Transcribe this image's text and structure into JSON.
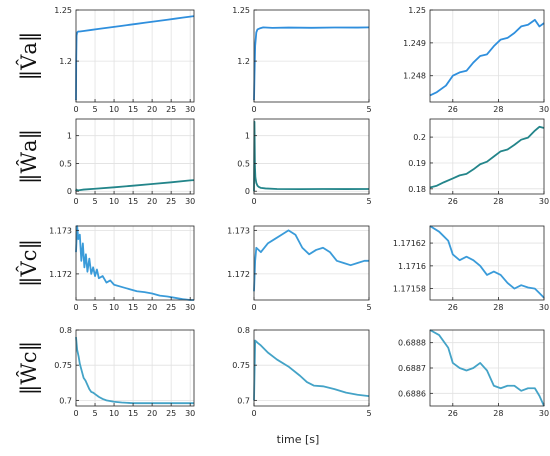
{
  "figure": {
    "xlabel": "time [s]",
    "row_labels": [
      "‖V̂a‖",
      "‖Ŵa‖",
      "‖V̂c‖",
      "‖Ŵc‖"
    ]
  },
  "chart_data": [
    {
      "type": "line",
      "row": 0,
      "col": 0,
      "color": "#2f8fdd",
      "xlim": [
        0,
        31
      ],
      "ylim": [
        1.16,
        1.25
      ],
      "xticks": [
        0,
        5,
        10,
        15,
        20,
        25,
        30
      ],
      "yticks": [
        1.2,
        1.25
      ],
      "ytick_labels": [
        "1.2",
        "1.25"
      ],
      "x": [
        0,
        0.05,
        0.15,
        0.3,
        0.6,
        1,
        2,
        4,
        6,
        8,
        10,
        12,
        14,
        16,
        18,
        20,
        22,
        24,
        26,
        28,
        30,
        31
      ],
      "y": [
        1.162,
        1.2,
        1.225,
        1.228,
        1.229,
        1.229,
        1.2295,
        1.2305,
        1.2315,
        1.2325,
        1.2335,
        1.2345,
        1.2355,
        1.2365,
        1.2375,
        1.2385,
        1.2395,
        1.2405,
        1.2415,
        1.2425,
        1.2435,
        1.244
      ]
    },
    {
      "type": "line",
      "row": 0,
      "col": 1,
      "color": "#2f8fdd",
      "xlim": [
        0,
        5
      ],
      "ylim": [
        1.16,
        1.25
      ],
      "xticks": [
        0,
        5
      ],
      "yticks": [
        1.2,
        1.25
      ],
      "ytick_labels": [
        "1.2",
        "1.25"
      ],
      "x": [
        0,
        0.02,
        0.05,
        0.1,
        0.15,
        0.25,
        0.4,
        0.8,
        1.5,
        2.5,
        3.5,
        4.5,
        5
      ],
      "y": [
        1.162,
        1.185,
        1.215,
        1.228,
        1.231,
        1.232,
        1.233,
        1.2325,
        1.2328,
        1.2326,
        1.2329,
        1.2328,
        1.233
      ]
    },
    {
      "type": "line",
      "row": 0,
      "col": 2,
      "color": "#2f8fdd",
      "xlim": [
        25,
        30
      ],
      "ylim": [
        1.2472,
        1.25
      ],
      "xticks": [
        26,
        28,
        30
      ],
      "yticks": [
        1.248,
        1.249,
        1.25
      ],
      "ytick_labels": [
        "1.248",
        "1.249",
        "1.25"
      ],
      "x": [
        25,
        25.3,
        25.7,
        26,
        26.3,
        26.6,
        26.9,
        27.2,
        27.5,
        27.8,
        28.1,
        28.4,
        28.7,
        29,
        29.3,
        29.6,
        29.8,
        30
      ],
      "y": [
        1.2474,
        1.2475,
        1.2477,
        1.248,
        1.2481,
        1.24815,
        1.2484,
        1.2486,
        1.24865,
        1.2489,
        1.2491,
        1.24915,
        1.2493,
        1.2495,
        1.24955,
        1.2497,
        1.2495,
        1.2496
      ]
    },
    {
      "type": "line",
      "row": 1,
      "col": 0,
      "color": "#23858a",
      "xlim": [
        0,
        31
      ],
      "ylim": [
        -0.05,
        1.3
      ],
      "xticks": [
        0,
        5,
        10,
        15,
        20,
        25,
        30
      ],
      "yticks": [
        0,
        0.5,
        1
      ],
      "ytick_labels": [
        "0",
        "0.5",
        "1"
      ],
      "x": [
        0,
        0.1,
        0.3,
        0.6,
        1,
        2,
        5,
        10,
        15,
        20,
        25,
        30,
        31
      ],
      "y": [
        0.0,
        0.03,
        0.02,
        0.015,
        0.02,
        0.03,
        0.045,
        0.07,
        0.1,
        0.13,
        0.16,
        0.195,
        0.2
      ]
    },
    {
      "type": "line",
      "row": 1,
      "col": 1,
      "color": "#23858a",
      "xlim": [
        0,
        5
      ],
      "ylim": [
        -0.05,
        1.3
      ],
      "xticks": [
        0,
        5
      ],
      "yticks": [
        0,
        0.5,
        1
      ],
      "ytick_labels": [
        "0",
        "0.5",
        "1"
      ],
      "x": [
        0,
        0.02,
        0.04,
        0.06,
        0.1,
        0.15,
        0.2,
        0.3,
        0.5,
        1,
        2,
        3,
        4,
        5
      ],
      "y": [
        0.0,
        1.25,
        0.45,
        0.25,
        0.15,
        0.1,
        0.08,
        0.06,
        0.05,
        0.04,
        0.038,
        0.04,
        0.039,
        0.04
      ]
    },
    {
      "type": "line",
      "row": 1,
      "col": 2,
      "color": "#23858a",
      "xlim": [
        25,
        30
      ],
      "ylim": [
        0.178,
        0.207
      ],
      "xticks": [
        26,
        28,
        30
      ],
      "yticks": [
        0.18,
        0.19,
        0.2
      ],
      "ytick_labels": [
        "0.18",
        "0.19",
        "0.2"
      ],
      "x": [
        25,
        25.3,
        25.6,
        26,
        26.3,
        26.6,
        26.9,
        27.2,
        27.5,
        27.8,
        28.1,
        28.4,
        28.7,
        29,
        29.3,
        29.6,
        29.8,
        30
      ],
      "y": [
        0.1805,
        0.1812,
        0.1825,
        0.184,
        0.1852,
        0.1858,
        0.1875,
        0.1895,
        0.1905,
        0.1925,
        0.1945,
        0.1952,
        0.197,
        0.199,
        0.1998,
        0.2025,
        0.204,
        0.2035
      ]
    },
    {
      "type": "line",
      "row": 2,
      "col": 0,
      "color": "#3a9bd9",
      "xlim": [
        0,
        31
      ],
      "ylim": [
        1.1714,
        1.1731
      ],
      "xticks": [
        0,
        5,
        10,
        15,
        20,
        25,
        30
      ],
      "yticks": [
        1.172,
        1.173
      ],
      "ytick_labels": [
        "1.172",
        "1.173"
      ],
      "x": [
        0,
        0.3,
        0.6,
        1,
        1.4,
        1.8,
        2.2,
        2.6,
        3,
        3.5,
        4,
        4.5,
        5,
        5.5,
        6,
        7,
        8,
        9,
        10,
        12,
        14,
        16,
        18,
        20,
        22,
        24,
        26,
        28,
        30,
        31
      ],
      "y": [
        1.1725,
        1.1731,
        1.1728,
        1.1729,
        1.1723,
        1.1727,
        1.17215,
        1.17245,
        1.17205,
        1.17235,
        1.172,
        1.17215,
        1.17195,
        1.1721,
        1.1719,
        1.17195,
        1.1718,
        1.17185,
        1.17175,
        1.1717,
        1.17165,
        1.1716,
        1.17158,
        1.17155,
        1.1715,
        1.17148,
        1.17145,
        1.17142,
        1.1714,
        1.1714
      ]
    },
    {
      "type": "line",
      "row": 2,
      "col": 1,
      "color": "#3a9bd9",
      "xlim": [
        0,
        5
      ],
      "ylim": [
        1.1714,
        1.1731
      ],
      "xticks": [
        0,
        5
      ],
      "yticks": [
        1.172,
        1.173
      ],
      "ytick_labels": [
        "1.172",
        "1.173"
      ],
      "x": [
        0,
        0.05,
        0.1,
        0.3,
        0.6,
        0.9,
        1.2,
        1.5,
        1.8,
        2.1,
        2.4,
        2.7,
        3,
        3.3,
        3.6,
        3.9,
        4.2,
        4.5,
        4.8,
        5
      ],
      "y": [
        1.1716,
        1.1723,
        1.1726,
        1.1725,
        1.1727,
        1.1728,
        1.1729,
        1.173,
        1.1729,
        1.1726,
        1.17245,
        1.17255,
        1.1726,
        1.1725,
        1.1723,
        1.17225,
        1.1722,
        1.17225,
        1.1723,
        1.1723
      ]
    },
    {
      "type": "line",
      "row": 2,
      "col": 2,
      "color": "#3a9bd9",
      "xlim": [
        25,
        30
      ],
      "ylim": [
        1.17157,
        1.171635
      ],
      "xticks": [
        26,
        28,
        30
      ],
      "yticks": [
        1.17158,
        1.1716,
        1.17162
      ],
      "ytick_labels": [
        "1.17158",
        "1.1716",
        "1.17162"
      ],
      "x": [
        25,
        25.4,
        25.8,
        26,
        26.3,
        26.6,
        26.9,
        27.2,
        27.5,
        27.8,
        28.1,
        28.4,
        28.7,
        29,
        29.3,
        29.6,
        29.8,
        30
      ],
      "y": [
        1.171635,
        1.17163,
        1.171622,
        1.17161,
        1.171605,
        1.171608,
        1.171605,
        1.1716,
        1.171592,
        1.171595,
        1.171592,
        1.171585,
        1.17158,
        1.171583,
        1.171581,
        1.17158,
        1.171576,
        1.171572
      ]
    },
    {
      "type": "line",
      "row": 3,
      "col": 0,
      "color": "#44a3c7",
      "xlim": [
        0,
        31
      ],
      "ylim": [
        0.692,
        0.8
      ],
      "xticks": [
        0,
        5,
        10,
        15,
        20,
        25,
        30
      ],
      "yticks": [
        0.7,
        0.75,
        0.8
      ],
      "ytick_labels": [
        "0.7",
        "0.75",
        "0.8"
      ],
      "x": [
        0,
        0.3,
        0.7,
        1,
        1.5,
        2,
        2.5,
        3,
        3.5,
        4,
        4.5,
        5,
        6,
        7,
        8,
        10,
        12,
        15,
        18,
        21,
        25,
        30,
        31
      ],
      "y": [
        0.79,
        0.772,
        0.762,
        0.752,
        0.742,
        0.732,
        0.728,
        0.722,
        0.716,
        0.712,
        0.711,
        0.709,
        0.705,
        0.702,
        0.7,
        0.698,
        0.697,
        0.696,
        0.696,
        0.696,
        0.696,
        0.696,
        0.696
      ]
    },
    {
      "type": "line",
      "row": 3,
      "col": 1,
      "color": "#44a3c7",
      "xlim": [
        0,
        5
      ],
      "ylim": [
        0.692,
        0.8
      ],
      "xticks": [
        0,
        5
      ],
      "yticks": [
        0.7,
        0.75,
        0.8
      ],
      "ytick_labels": [
        "0.7",
        "0.75",
        "0.8"
      ],
      "x": [
        0,
        0.05,
        0.15,
        0.3,
        0.6,
        1,
        1.5,
        2,
        2.3,
        2.6,
        3,
        3.5,
        4,
        4.5,
        5
      ],
      "y": [
        0.7,
        0.785,
        0.782,
        0.778,
        0.768,
        0.758,
        0.748,
        0.735,
        0.726,
        0.721,
        0.72,
        0.716,
        0.711,
        0.708,
        0.706
      ]
    },
    {
      "type": "line",
      "row": 3,
      "col": 2,
      "color": "#44a3c7",
      "xlim": [
        25,
        30
      ],
      "ylim": [
        0.68855,
        0.68885
      ],
      "xticks": [
        26,
        28,
        30
      ],
      "yticks": [
        0.6886,
        0.6887,
        0.6888
      ],
      "ytick_labels": [
        "0.6886",
        "0.6887",
        "0.6888"
      ],
      "x": [
        25,
        25.4,
        25.8,
        26,
        26.3,
        26.6,
        26.9,
        27.2,
        27.5,
        27.8,
        28.1,
        28.4,
        28.7,
        29,
        29.3,
        29.6,
        29.8,
        30
      ],
      "y": [
        0.68885,
        0.68883,
        0.68878,
        0.68872,
        0.6887,
        0.68869,
        0.6887,
        0.68872,
        0.68869,
        0.68863,
        0.68862,
        0.68863,
        0.68863,
        0.68861,
        0.68862,
        0.68862,
        0.68859,
        0.68855
      ]
    }
  ]
}
